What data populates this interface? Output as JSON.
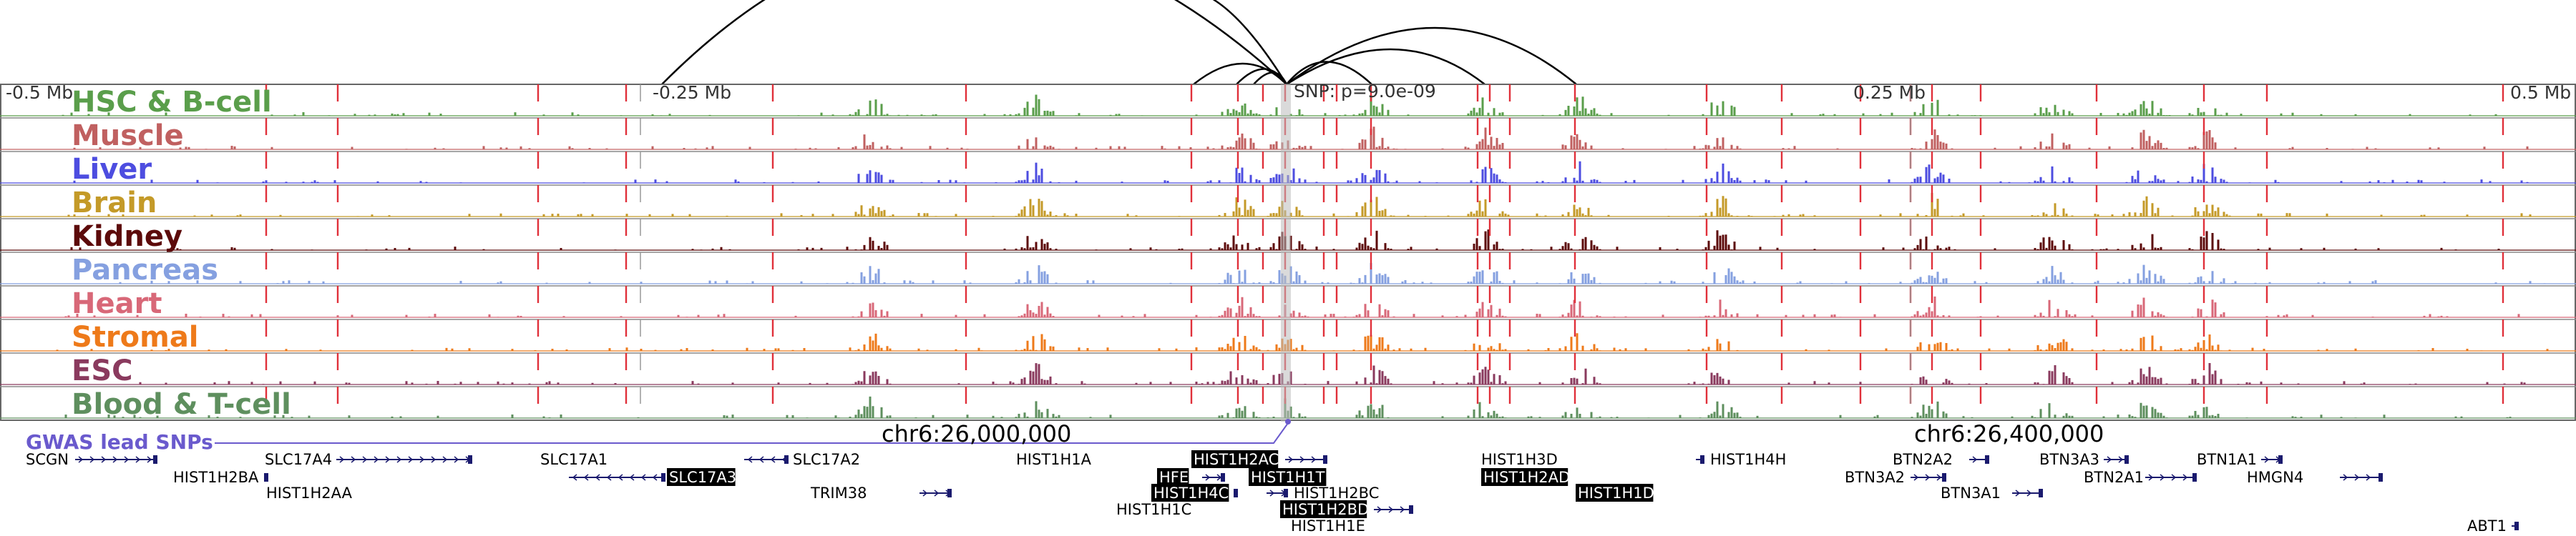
{
  "axis": {
    "left": "-0.5 Mb",
    "mid_left": "-0.25 Mb",
    "mid_right": "0.25 Mb",
    "right": "0.5 Mb"
  },
  "snp": {
    "label": "SNP: p=9.0e-09"
  },
  "gwas": {
    "label": "GWAS lead SNPs"
  },
  "coords": {
    "left": "chr6:26,000,000",
    "right": "chr6:26,400,000"
  },
  "tracks": [
    {
      "name": "HSC & B-cell",
      "color": "#5a9e4b"
    },
    {
      "name": "Muscle",
      "color": "#c06060"
    },
    {
      "name": "Liver",
      "color": "#4d4de0"
    },
    {
      "name": "Brain",
      "color": "#c49a28"
    },
    {
      "name": "Kidney",
      "color": "#5c0a0a"
    },
    {
      "name": "Pancreas",
      "color": "#85a0e0"
    },
    {
      "name": "Heart",
      "color": "#d86878"
    },
    {
      "name": "Stromal",
      "color": "#ee7a1a"
    },
    {
      "name": "ESC",
      "color": "#8a3a5e"
    },
    {
      "name": "Blood & T-cell",
      "color": "#5e8f5e"
    }
  ],
  "genes": [
    {
      "name": "SCGN",
      "highlight": false
    },
    {
      "name": "HIST1H2BA",
      "highlight": false
    },
    {
      "name": "SLC17A4",
      "highlight": false
    },
    {
      "name": "HIST1H2AA",
      "highlight": false
    },
    {
      "name": "SLC17A1",
      "highlight": false
    },
    {
      "name": "SLC17A3",
      "highlight": true
    },
    {
      "name": "SLC17A2",
      "highlight": false
    },
    {
      "name": "TRIM38",
      "highlight": false
    },
    {
      "name": "HIST1H1A",
      "highlight": false
    },
    {
      "name": "HIST1H1C",
      "highlight": false
    },
    {
      "name": "HIST1H2AC",
      "highlight": true
    },
    {
      "name": "HFE",
      "highlight": true
    },
    {
      "name": "HIST1H4C",
      "highlight": true
    },
    {
      "name": "HIST1H1T",
      "highlight": true
    },
    {
      "name": "HIST1H2BC",
      "highlight": false
    },
    {
      "name": "HIST1H2BD",
      "highlight": true
    },
    {
      "name": "HIST1H1E",
      "highlight": false
    },
    {
      "name": "HIST1H3D",
      "highlight": false
    },
    {
      "name": "HIST1H2AD",
      "highlight": true
    },
    {
      "name": "HIST1H1D",
      "highlight": true
    },
    {
      "name": "HIST1H4H",
      "highlight": false
    },
    {
      "name": "BTN2A2",
      "highlight": false
    },
    {
      "name": "BTN3A2",
      "highlight": false
    },
    {
      "name": "BTN3A3",
      "highlight": false
    },
    {
      "name": "BTN3A1",
      "highlight": false
    },
    {
      "name": "BTN2A1",
      "highlight": false
    },
    {
      "name": "BTN1A1",
      "highlight": false
    },
    {
      "name": "HMGN4",
      "highlight": false
    },
    {
      "name": "ABT1",
      "highlight": false
    }
  ]
}
